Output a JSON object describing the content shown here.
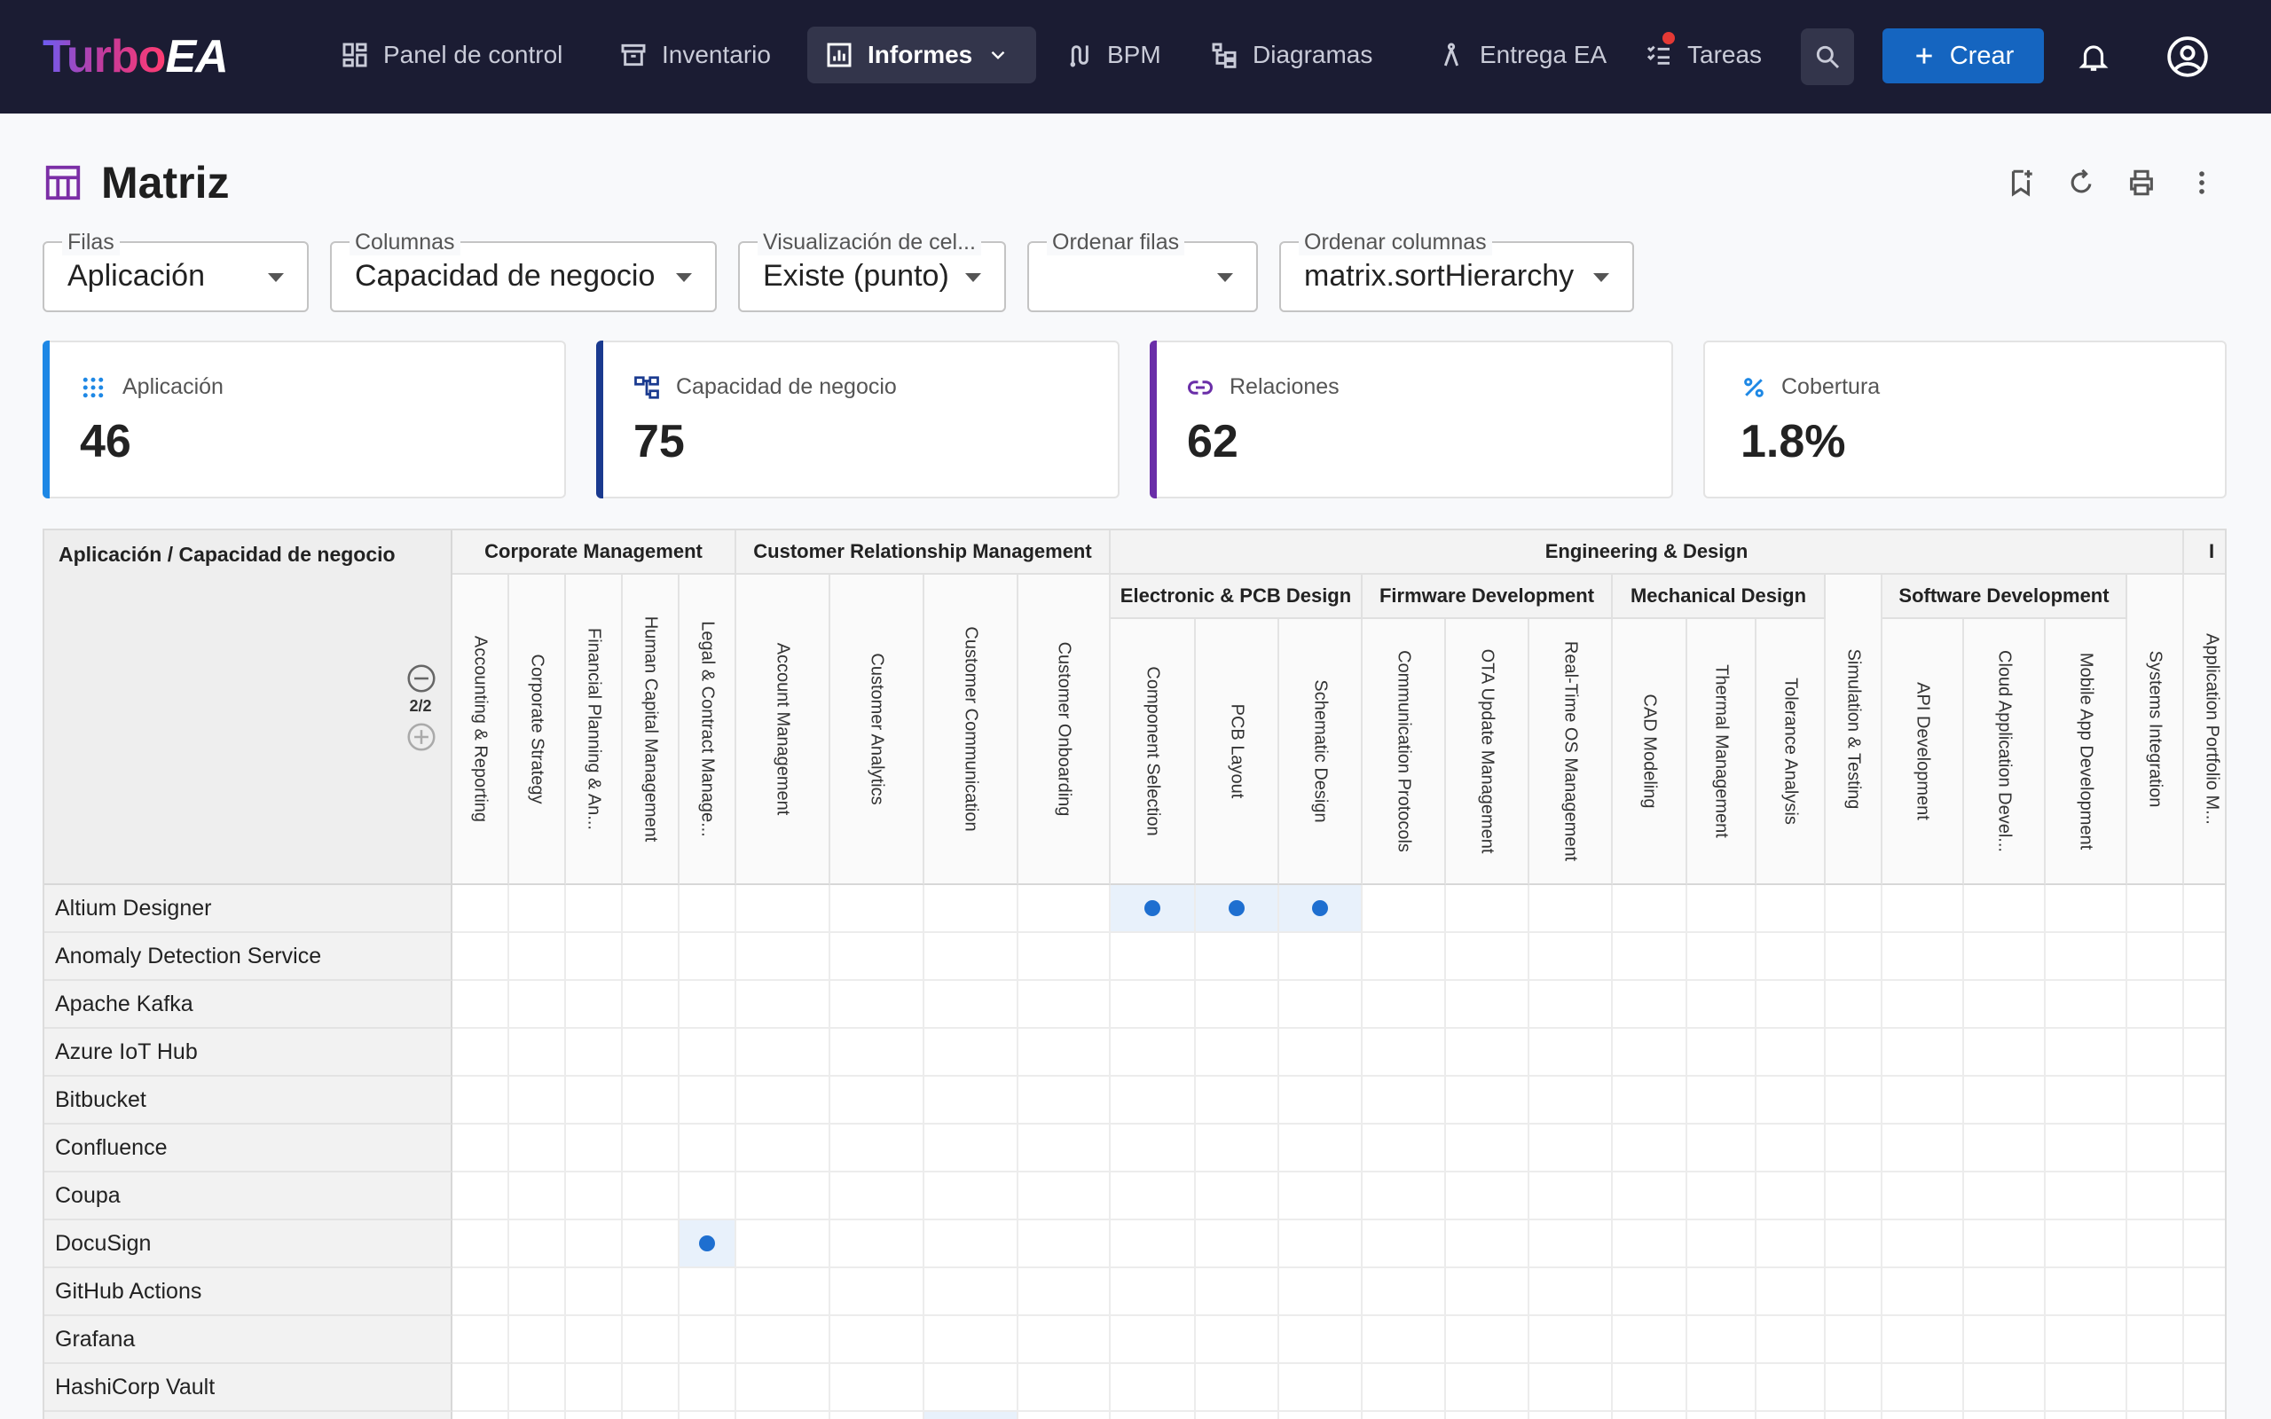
{
  "brand": {
    "part1": "Turbo",
    "part2": "EA"
  },
  "nav": [
    {
      "label": "Panel de control",
      "icon": "dashboard-icon"
    },
    {
      "label": "Inventario",
      "icon": "inventory-icon"
    },
    {
      "label": "Informes",
      "icon": "reports-icon",
      "active": true
    },
    {
      "label": "BPM",
      "icon": "bpm-icon"
    },
    {
      "label": "Diagramas",
      "icon": "diagram-icon"
    },
    {
      "label": "Entrega EA",
      "icon": "delivery-icon"
    },
    {
      "label": "Tareas",
      "icon": "tasks-icon"
    }
  ],
  "create_label": "Crear",
  "page_title": "Matriz",
  "filters": {
    "rows": {
      "label": "Filas",
      "value": "Aplicación"
    },
    "cols": {
      "label": "Columnas",
      "value": "Capacidad de negocio"
    },
    "cell": {
      "label": "Visualización de cel...",
      "value": "Existe (punto)"
    },
    "sort_rows": {
      "label": "Ordenar filas",
      "value": ""
    },
    "sort_cols": {
      "label": "Ordenar columnas",
      "value": "matrix.sortHierarchy"
    }
  },
  "stats": [
    {
      "label": "Aplicación",
      "value": "46",
      "color": "#1e88e5"
    },
    {
      "label": "Capacidad de negocio",
      "value": "75",
      "color": "#1a3a8f"
    },
    {
      "label": "Relaciones",
      "value": "62",
      "color": "#6a2ea8"
    },
    {
      "label": "Cobertura",
      "value": "1.8%",
      "color": ""
    }
  ],
  "matrix": {
    "corner_label": "Aplicación / Capacidad de negocio",
    "depth": "2/2",
    "groups": [
      "Corporate Management",
      "Customer Relationship Management",
      "Engineering & Design",
      "I"
    ],
    "subgroups": [
      "Electronic & PCB Design",
      "Firmware Development",
      "Mechanical Design",
      "Software Development"
    ],
    "columns": [
      "Accounting & Reporting",
      "Corporate Strategy",
      "Financial Planning & An...",
      "Human Capital Management",
      "Legal & Contract Manage...",
      "Account Management",
      "Customer Analytics",
      "Customer Communication",
      "Customer Onboarding",
      "Component Selection",
      "PCB Layout",
      "Schematic Design",
      "Communication Protocols",
      "OTA Update Management",
      "Real-Time OS Management",
      "CAD Modeling",
      "Thermal Management",
      "Tolerance Analysis",
      "Simulation & Testing",
      "API Development",
      "Cloud Application Devel...",
      "Mobile App Development",
      "Systems Integration",
      "Application Portfolio M..."
    ],
    "rows": [
      "Altium Designer",
      "Anomaly Detection Service",
      "Apache Kafka",
      "Azure IoT Hub",
      "Bitbucket",
      "Confluence",
      "Coupa",
      "DocuSign",
      "GitHub Actions",
      "Grafana",
      "HashiCorp Vault",
      ""
    ],
    "links": [
      [
        0,
        9
      ],
      [
        0,
        10
      ],
      [
        0,
        11
      ],
      [
        7,
        4
      ]
    ],
    "partial_highlight": [
      [
        11,
        7
      ]
    ]
  }
}
